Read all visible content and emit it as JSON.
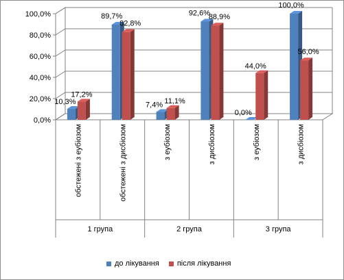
{
  "chart_data": {
    "type": "bar",
    "subtype": "3d-clustered-column",
    "title": "",
    "xlabel": "",
    "ylabel": "",
    "ylim": [
      0,
      100
    ],
    "ytick_labels": [
      "0,0%",
      "20,0%",
      "40,0%",
      "60,0%",
      "80,0%",
      "100,0%"
    ],
    "groups": [
      {
        "label": "1 група",
        "categories": [
          "обстежені з еубіозом",
          "обстежені з дисбіозом"
        ]
      },
      {
        "label": "2 група",
        "categories": [
          "з еубіозом",
          "з дисбіозом"
        ]
      },
      {
        "label": "3 група",
        "categories": [
          "з еубіозом",
          "з дисбіозом"
        ]
      }
    ],
    "series": [
      {
        "name": "до лікування",
        "color": "#4F81BD",
        "values": [
          10.3,
          89.7,
          7.4,
          92.6,
          0.0,
          100.0
        ],
        "labels": [
          "10,3%",
          "89,7%",
          "7,4%",
          "92,6%",
          "0,0%",
          "100,0%"
        ]
      },
      {
        "name": "після лікування",
        "color": "#C0504D",
        "values": [
          17.2,
          82.8,
          11.1,
          88.9,
          44.0,
          56.0
        ],
        "labels": [
          "17,2%",
          "82,8%",
          "11,1%",
          "88,9%",
          "44,0%",
          "56,0%"
        ]
      }
    ],
    "grid": true,
    "legend_position": "bottom"
  }
}
